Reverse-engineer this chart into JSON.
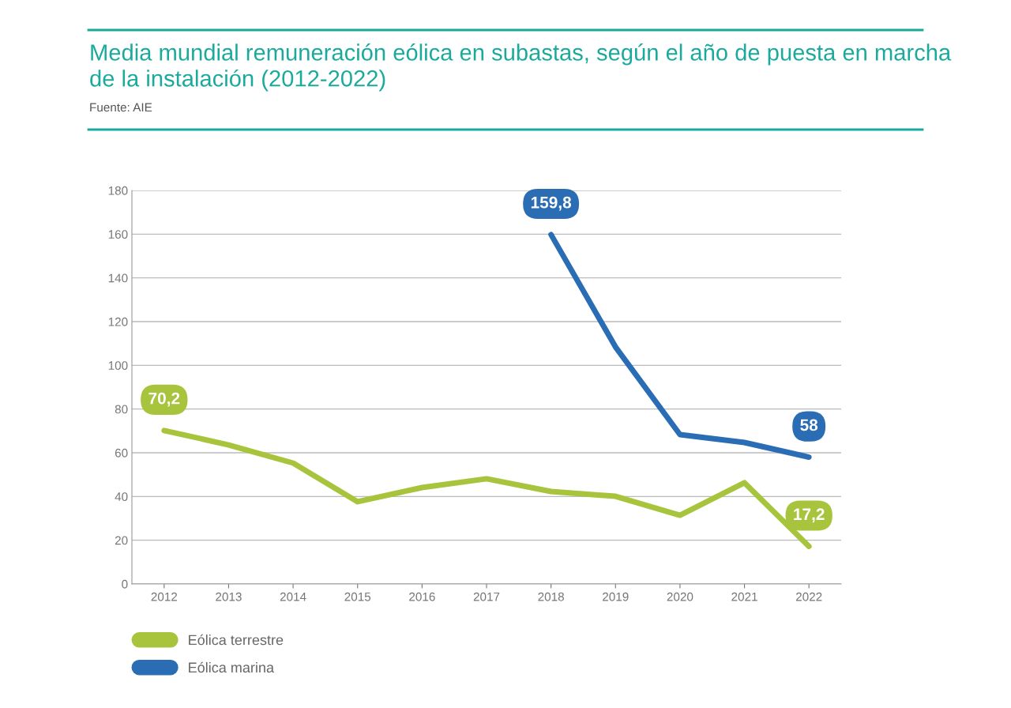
{
  "chart_data": {
    "type": "line",
    "title": "Media mundial remuneración eólica en subastas, según el año de puesta en marcha\nde la instalación (2012-2022)",
    "subtitle": "Fuente: AIE",
    "categories": [
      "2012",
      "2013",
      "2014",
      "2015",
      "2016",
      "2017",
      "2018",
      "2019",
      "2020",
      "2021",
      "2022"
    ],
    "series": [
      {
        "name": "Eólica terrestre",
        "color": "#a8c43c",
        "values": [
          70.2,
          63.6,
          55.3,
          37.6,
          44.1,
          48.1,
          42.3,
          40.1,
          31.4,
          46.3,
          17.2
        ],
        "value_labels": [
          "70,2",
          null,
          null,
          null,
          null,
          null,
          null,
          null,
          null,
          null,
          "17,2"
        ]
      },
      {
        "name": "Eólica marina",
        "color": "#2a6db5",
        "values": [
          null,
          null,
          null,
          null,
          null,
          null,
          159.8,
          108.4,
          68.3,
          64.7,
          58
        ],
        "value_labels": [
          null,
          null,
          null,
          null,
          null,
          null,
          "159,8",
          null,
          null,
          null,
          "58"
        ]
      }
    ],
    "ylim": [
      0,
      180
    ],
    "yticks": [
      0,
      20,
      40,
      60,
      80,
      100,
      120,
      140,
      160,
      180
    ],
    "grid": "y",
    "legend": "bottom left",
    "marker": "none",
    "line_style": "solid"
  }
}
